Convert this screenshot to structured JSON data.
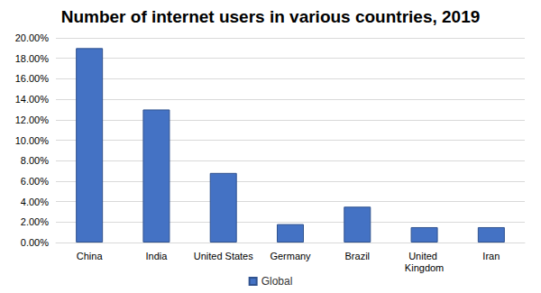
{
  "chart_data": {
    "type": "bar",
    "title": "Number of internet users in various countries, 2019",
    "categories": [
      "China",
      "India",
      "United States",
      "Germany",
      "Brazil",
      "United Kingdom",
      "Iran"
    ],
    "series": [
      {
        "name": "Global",
        "color": "#4472c4",
        "values": [
          19,
          13,
          6.8,
          1.8,
          3.5,
          1.5,
          1.5
        ]
      }
    ],
    "ylim": [
      0,
      20
    ],
    "yticks": [
      {
        "value": 0,
        "label": "0.00%"
      },
      {
        "value": 2,
        "label": "2.00%"
      },
      {
        "value": 4,
        "label": "4.00%"
      },
      {
        "value": 6,
        "label": "6.00%"
      },
      {
        "value": 8,
        "label": "8.00%"
      },
      {
        "value": 10,
        "label": "10.00%"
      },
      {
        "value": 12,
        "label": "12.00%"
      },
      {
        "value": 14,
        "label": "14.00%"
      },
      {
        "value": 16,
        "label": "16.00%"
      },
      {
        "value": 18,
        "label": "18.00%"
      },
      {
        "value": 20,
        "label": "20.00%"
      }
    ],
    "grid": true,
    "legend": "bottom"
  }
}
